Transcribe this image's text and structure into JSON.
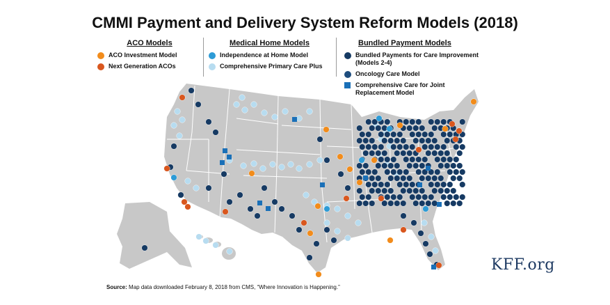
{
  "title": "CMMI Payment and Delivery System Reform Models (2018)",
  "colors": {
    "aco_investment": "#F28C1B",
    "next_gen_aco": "#D9571E",
    "independence_home": "#2D9BD6",
    "comprehensive_primary": "#B7DCF0",
    "bundled": "#163A63",
    "oncology": "#1E4D7E",
    "joint_replacement": "#1A70B8",
    "land": "#C8C8C8",
    "border": "#ffffff"
  },
  "legend": {
    "aco": {
      "heading": "ACO Models",
      "items": [
        {
          "label": "ACO Investment Model",
          "color_key": "aco_investment",
          "shape": "circle"
        },
        {
          "label": "Next Generation ACOs",
          "color_key": "next_gen_aco",
          "shape": "circle"
        }
      ]
    },
    "medical_home": {
      "heading": "Medical Home Models",
      "items": [
        {
          "label": "Independence at Home Model",
          "color_key": "independence_home",
          "shape": "circle"
        },
        {
          "label": "Comprehensive Primary Care Plus",
          "color_key": "comprehensive_primary",
          "shape": "circle"
        }
      ]
    },
    "bundled": {
      "heading": "Bundled Payment Models",
      "items": [
        {
          "label": "Bundled Payments for Care Improvement (Models 2-4)",
          "color_key": "bundled",
          "shape": "circle"
        },
        {
          "label": "Oncology Care Model",
          "color_key": "oncology",
          "shape": "circle"
        },
        {
          "label": "Comprehensive Care for Joint Replacement Model",
          "color_key": "joint_replacement",
          "shape": "square"
        }
      ]
    }
  },
  "brand": "KFF.org",
  "source": {
    "label": "Source:",
    "text": "Map data downloaded February 8, 2018 from CMS, “Where Innovation is Happening.”"
  }
}
